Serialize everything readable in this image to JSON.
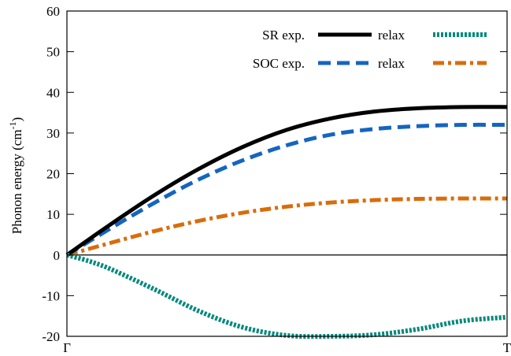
{
  "chart_data": {
    "type": "line",
    "title": "",
    "xlabel": "",
    "ylabel": "Phonon energy (cm",
    "ylabel_sup": "-1",
    "ylabel_close": ")",
    "xlim": [
      0,
      1
    ],
    "ylim": [
      -20,
      60
    ],
    "yticks": [
      -20,
      -10,
      0,
      10,
      20,
      30,
      40,
      50,
      60
    ],
    "ytick_labels": [
      "-20",
      "-10",
      "0",
      "10",
      "20",
      "30",
      "40",
      "50",
      "60"
    ],
    "xticks": [
      0,
      1
    ],
    "xtick_labels": [
      "Γ",
      "T"
    ],
    "grid": false,
    "zero_line": true,
    "legend_position": "top-right",
    "legend_rows": [
      {
        "group": "SR exp.",
        "group_series": 0,
        "second_label": "relax",
        "second_series": 1
      },
      {
        "group": "SOC exp.",
        "group_series": 2,
        "second_label": "relax",
        "second_series": 3
      }
    ],
    "series": [
      {
        "color": "#000000",
        "style": "solid",
        "x": [
          0,
          0.1,
          0.2,
          0.3,
          0.4,
          0.5,
          0.6,
          0.7,
          0.8,
          0.9,
          1.0
        ],
        "y": [
          0,
          7.6,
          14.8,
          21.2,
          26.6,
          30.8,
          33.6,
          35.3,
          36.1,
          36.4,
          36.4
        ]
      },
      {
        "color": "#00897b",
        "style": "dotted",
        "x": [
          0,
          0.05,
          0.1,
          0.2,
          0.3,
          0.4,
          0.5,
          0.6,
          0.7,
          0.8,
          0.9,
          1.0
        ],
        "y": [
          0,
          -1.5,
          -3.5,
          -8.5,
          -13.8,
          -17.8,
          -19.8,
          -20.0,
          -19.6,
          -18.2,
          -16.2,
          -15.3
        ]
      },
      {
        "color": "#1565c0",
        "style": "dashed",
        "x": [
          0,
          0.1,
          0.2,
          0.3,
          0.4,
          0.5,
          0.6,
          0.7,
          0.8,
          0.9,
          1.0
        ],
        "y": [
          0,
          6.6,
          12.9,
          18.6,
          23.3,
          27.0,
          29.6,
          31.0,
          31.7,
          32.0,
          32.0
        ]
      },
      {
        "color": "#d96c0b",
        "style": "dashdot",
        "x": [
          0,
          0.1,
          0.2,
          0.3,
          0.4,
          0.5,
          0.6,
          0.7,
          0.8,
          0.9,
          1.0
        ],
        "y": [
          0,
          3.0,
          5.9,
          8.4,
          10.4,
          11.9,
          12.9,
          13.5,
          13.8,
          13.9,
          13.9
        ]
      }
    ]
  }
}
